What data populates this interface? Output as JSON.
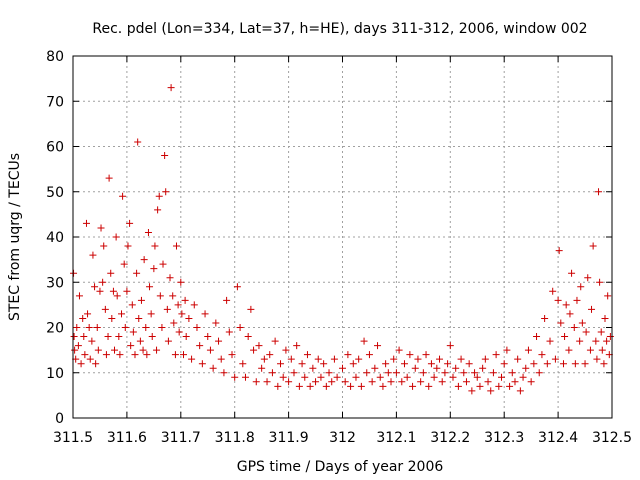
{
  "chart_data": {
    "type": "scatter",
    "title": "Rec. pdel (Lon=334, Lat=37, h=HE), days 311-312, 2006, window 002",
    "xlabel": "GPS time / Days of year 2006",
    "ylabel": "STEC from uqrg / TECUs",
    "xlim": [
      311.5,
      312.5
    ],
    "ylim": [
      0,
      80
    ],
    "xticks": [
      "311.5",
      "311.6",
      "311.7",
      "311.8",
      "311.9",
      "312",
      "312.1",
      "312.2",
      "312.3",
      "312.4",
      "312.5"
    ],
    "yticks": [
      "0",
      "10",
      "20",
      "30",
      "40",
      "50",
      "60",
      "70",
      "80"
    ],
    "grid": true,
    "marker": "+",
    "color": "#cc0000",
    "points": [
      [
        311.501,
        32
      ],
      [
        311.502,
        18
      ],
      [
        311.503,
        15
      ],
      [
        311.505,
        13
      ],
      [
        311.507,
        20
      ],
      [
        311.51,
        16
      ],
      [
        311.512,
        27
      ],
      [
        311.515,
        12
      ],
      [
        311.518,
        22
      ],
      [
        311.52,
        18
      ],
      [
        311.522,
        14
      ],
      [
        311.525,
        43
      ],
      [
        311.527,
        23
      ],
      [
        311.53,
        20
      ],
      [
        311.532,
        13
      ],
      [
        311.535,
        17
      ],
      [
        311.537,
        36
      ],
      [
        311.54,
        29
      ],
      [
        311.542,
        12
      ],
      [
        311.545,
        20
      ],
      [
        311.547,
        15
      ],
      [
        311.55,
        28
      ],
      [
        311.552,
        42
      ],
      [
        311.555,
        30
      ],
      [
        311.557,
        38
      ],
      [
        311.56,
        24
      ],
      [
        311.562,
        14
      ],
      [
        311.565,
        18
      ],
      [
        311.567,
        53
      ],
      [
        311.57,
        32
      ],
      [
        311.572,
        22
      ],
      [
        311.575,
        28
      ],
      [
        311.577,
        15
      ],
      [
        311.58,
        40
      ],
      [
        311.582,
        27
      ],
      [
        311.585,
        18
      ],
      [
        311.587,
        14
      ],
      [
        311.59,
        23
      ],
      [
        311.592,
        49
      ],
      [
        311.595,
        34
      ],
      [
        311.597,
        20
      ],
      [
        311.6,
        28
      ],
      [
        311.602,
        38
      ],
      [
        311.605,
        43
      ],
      [
        311.607,
        16
      ],
      [
        311.61,
        25
      ],
      [
        311.612,
        19
      ],
      [
        311.615,
        14
      ],
      [
        311.618,
        32
      ],
      [
        311.62,
        61
      ],
      [
        311.622,
        22
      ],
      [
        311.625,
        17
      ],
      [
        311.627,
        26
      ],
      [
        311.63,
        15
      ],
      [
        311.632,
        35
      ],
      [
        311.635,
        20
      ],
      [
        311.637,
        14
      ],
      [
        311.64,
        41
      ],
      [
        311.642,
        29
      ],
      [
        311.645,
        23
      ],
      [
        311.647,
        18
      ],
      [
        311.65,
        33
      ],
      [
        311.652,
        38
      ],
      [
        311.655,
        15
      ],
      [
        311.657,
        46
      ],
      [
        311.66,
        49
      ],
      [
        311.662,
        27
      ],
      [
        311.665,
        20
      ],
      [
        311.667,
        34
      ],
      [
        311.67,
        58
      ],
      [
        311.672,
        50
      ],
      [
        311.675,
        24
      ],
      [
        311.677,
        17
      ],
      [
        311.68,
        31
      ],
      [
        311.682,
        73
      ],
      [
        311.685,
        27
      ],
      [
        311.687,
        21
      ],
      [
        311.69,
        14
      ],
      [
        311.692,
        38
      ],
      [
        311.695,
        25
      ],
      [
        311.697,
        19
      ],
      [
        311.7,
        30
      ],
      [
        311.702,
        23
      ],
      [
        311.705,
        14
      ],
      [
        311.708,
        26
      ],
      [
        311.71,
        18
      ],
      [
        311.715,
        22
      ],
      [
        311.72,
        13
      ],
      [
        311.725,
        25
      ],
      [
        311.73,
        20
      ],
      [
        311.735,
        16
      ],
      [
        311.74,
        12
      ],
      [
        311.745,
        23
      ],
      [
        311.75,
        18
      ],
      [
        311.755,
        15
      ],
      [
        311.76,
        11
      ],
      [
        311.765,
        21
      ],
      [
        311.77,
        17
      ],
      [
        311.775,
        13
      ],
      [
        311.78,
        10
      ],
      [
        311.785,
        26
      ],
      [
        311.79,
        19
      ],
      [
        311.795,
        14
      ],
      [
        311.8,
        9
      ],
      [
        311.805,
        29
      ],
      [
        311.81,
        20
      ],
      [
        311.815,
        12
      ],
      [
        311.82,
        9
      ],
      [
        311.825,
        18
      ],
      [
        311.83,
        24
      ],
      [
        311.835,
        15
      ],
      [
        311.84,
        8
      ],
      [
        311.845,
        16
      ],
      [
        311.85,
        11
      ],
      [
        311.855,
        13
      ],
      [
        311.86,
        8
      ],
      [
        311.865,
        14
      ],
      [
        311.87,
        10
      ],
      [
        311.875,
        17
      ],
      [
        311.88,
        7
      ],
      [
        311.885,
        12
      ],
      [
        311.89,
        9
      ],
      [
        311.895,
        15
      ],
      [
        311.9,
        8
      ],
      [
        311.905,
        13
      ],
      [
        311.91,
        10
      ],
      [
        311.915,
        16
      ],
      [
        311.92,
        7
      ],
      [
        311.925,
        12
      ],
      [
        311.93,
        9
      ],
      [
        311.935,
        14
      ],
      [
        311.94,
        7
      ],
      [
        311.945,
        11
      ],
      [
        311.95,
        8
      ],
      [
        311.955,
        13
      ],
      [
        311.96,
        9
      ],
      [
        311.965,
        12
      ],
      [
        311.97,
        7
      ],
      [
        311.975,
        10
      ],
      [
        311.98,
        8
      ],
      [
        311.985,
        13
      ],
      [
        311.99,
        9
      ],
      [
        312.0,
        11
      ],
      [
        312.005,
        8
      ],
      [
        312.01,
        14
      ],
      [
        312.015,
        7
      ],
      [
        312.02,
        12
      ],
      [
        312.025,
        9
      ],
      [
        312.03,
        13
      ],
      [
        312.035,
        7
      ],
      [
        312.04,
        17
      ],
      [
        312.045,
        10
      ],
      [
        312.05,
        14
      ],
      [
        312.055,
        8
      ],
      [
        312.06,
        11
      ],
      [
        312.065,
        16
      ],
      [
        312.07,
        9
      ],
      [
        312.075,
        7
      ],
      [
        312.08,
        12
      ],
      [
        312.085,
        10
      ],
      [
        312.09,
        8
      ],
      [
        312.095,
        13
      ],
      [
        312.1,
        10
      ],
      [
        312.105,
        15
      ],
      [
        312.11,
        8
      ],
      [
        312.115,
        12
      ],
      [
        312.12,
        9
      ],
      [
        312.125,
        14
      ],
      [
        312.13,
        7
      ],
      [
        312.135,
        11
      ],
      [
        312.14,
        13
      ],
      [
        312.145,
        8
      ],
      [
        312.15,
        10
      ],
      [
        312.155,
        14
      ],
      [
        312.16,
        7
      ],
      [
        312.165,
        12
      ],
      [
        312.17,
        9
      ],
      [
        312.175,
        11
      ],
      [
        312.18,
        13
      ],
      [
        312.185,
        8
      ],
      [
        312.19,
        10
      ],
      [
        312.195,
        12
      ],
      [
        312.2,
        16
      ],
      [
        312.205,
        9
      ],
      [
        312.21,
        11
      ],
      [
        312.215,
        7
      ],
      [
        312.22,
        13
      ],
      [
        312.225,
        10
      ],
      [
        312.23,
        8
      ],
      [
        312.235,
        12
      ],
      [
        312.24,
        6
      ],
      [
        312.245,
        10
      ],
      [
        312.25,
        9
      ],
      [
        312.255,
        7
      ],
      [
        312.26,
        11
      ],
      [
        312.265,
        13
      ],
      [
        312.27,
        8
      ],
      [
        312.275,
        6
      ],
      [
        312.28,
        10
      ],
      [
        312.285,
        14
      ],
      [
        312.29,
        7
      ],
      [
        312.295,
        9
      ],
      [
        312.3,
        12
      ],
      [
        312.305,
        15
      ],
      [
        312.31,
        7
      ],
      [
        312.315,
        10
      ],
      [
        312.32,
        8
      ],
      [
        312.325,
        13
      ],
      [
        312.33,
        6
      ],
      [
        312.335,
        9
      ],
      [
        312.34,
        11
      ],
      [
        312.345,
        15
      ],
      [
        312.35,
        8
      ],
      [
        312.355,
        12
      ],
      [
        312.36,
        18
      ],
      [
        312.365,
        10
      ],
      [
        312.37,
        14
      ],
      [
        312.375,
        22
      ],
      [
        312.38,
        12
      ],
      [
        312.385,
        17
      ],
      [
        312.39,
        28
      ],
      [
        312.395,
        13
      ],
      [
        312.4,
        26
      ],
      [
        312.402,
        37
      ],
      [
        312.405,
        21
      ],
      [
        312.41,
        12
      ],
      [
        312.412,
        18
      ],
      [
        312.415,
        25
      ],
      [
        312.42,
        15
      ],
      [
        312.422,
        23
      ],
      [
        312.425,
        32
      ],
      [
        312.43,
        20
      ],
      [
        312.432,
        12
      ],
      [
        312.435,
        26
      ],
      [
        312.44,
        17
      ],
      [
        312.442,
        29
      ],
      [
        312.445,
        21
      ],
      [
        312.45,
        12
      ],
      [
        312.452,
        19
      ],
      [
        312.455,
        31
      ],
      [
        312.46,
        15
      ],
      [
        312.462,
        24
      ],
      [
        312.465,
        38
      ],
      [
        312.47,
        17
      ],
      [
        312.472,
        13
      ],
      [
        312.475,
        50
      ],
      [
        312.477,
        30
      ],
      [
        312.48,
        19
      ],
      [
        312.482,
        15
      ],
      [
        312.485,
        12
      ],
      [
        312.487,
        22
      ],
      [
        312.49,
        17
      ],
      [
        312.492,
        27
      ],
      [
        312.495,
        14
      ],
      [
        312.497,
        18
      ]
    ]
  }
}
